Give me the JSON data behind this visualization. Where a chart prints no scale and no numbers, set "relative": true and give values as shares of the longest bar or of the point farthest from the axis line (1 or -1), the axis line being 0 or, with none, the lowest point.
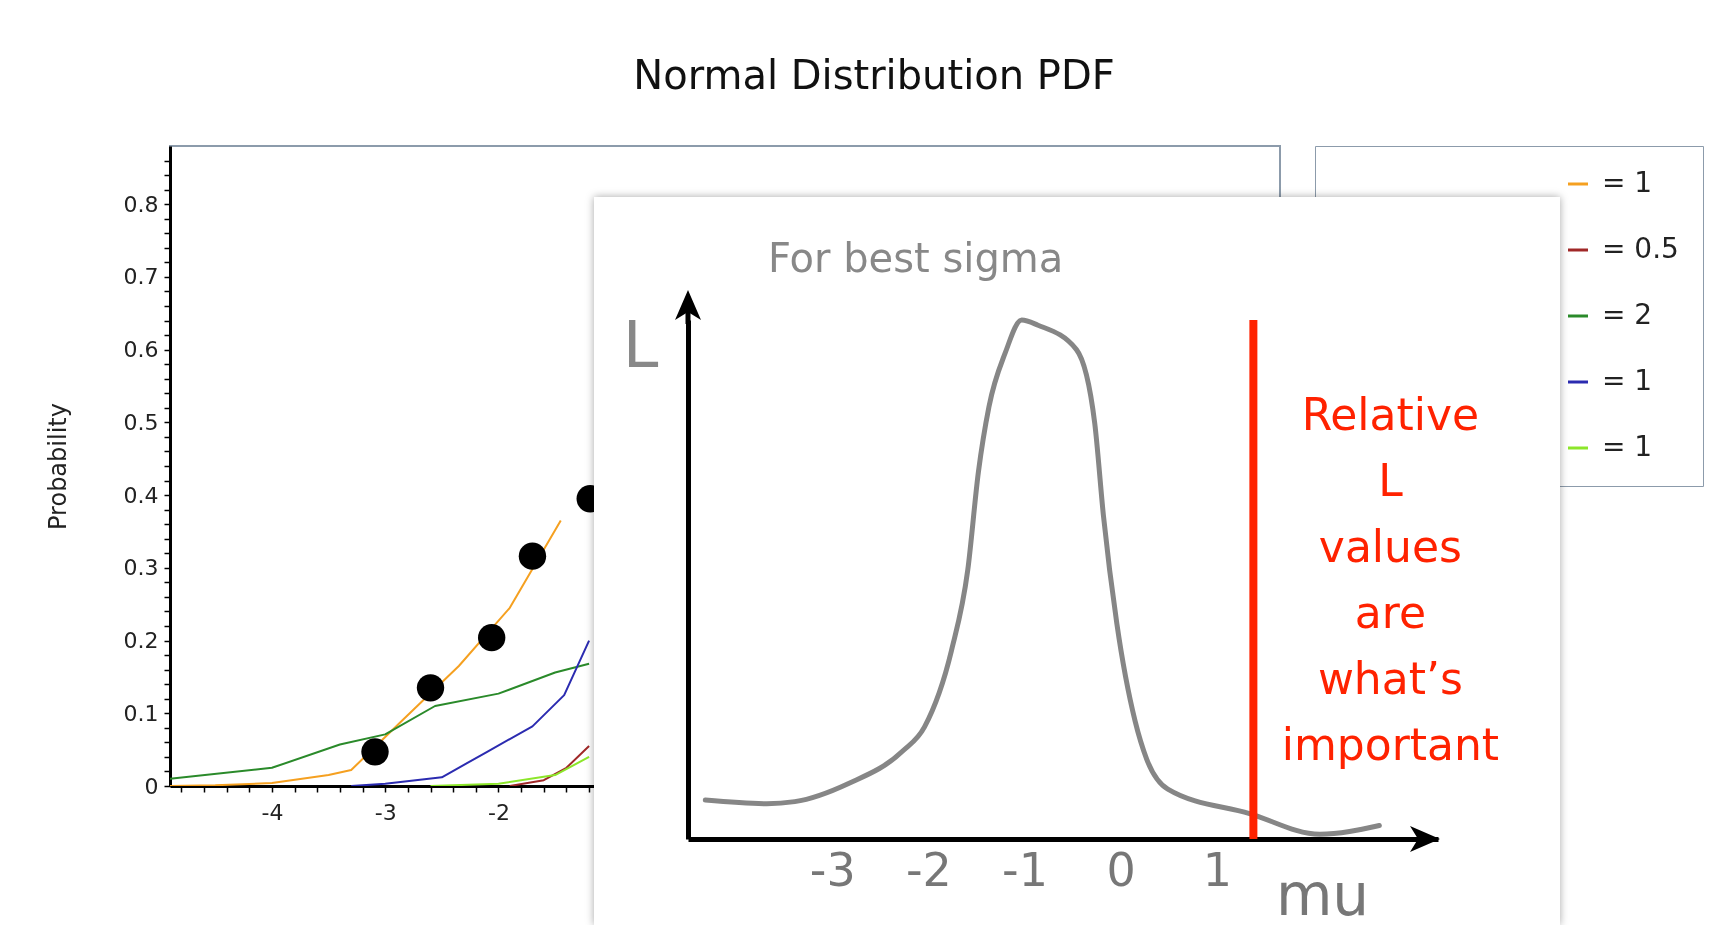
{
  "chart_data": [
    {
      "type": "line",
      "title": "Normal Distribution PDF",
      "ylabel": "Probability",
      "xlim": [
        -4.9,
        4.9
      ],
      "ylim": [
        0,
        0.88
      ],
      "xticks": [
        {
          "value": -4.8,
          "label": null
        },
        {
          "value": -4.6,
          "label": null
        },
        {
          "value": -4.4,
          "label": null
        },
        {
          "value": -4.2,
          "label": null
        },
        -4,
        {
          "value": -3.8,
          "label": null
        },
        {
          "value": -3.6,
          "label": null
        },
        {
          "value": -3.4,
          "label": null
        },
        {
          "value": -3.2,
          "label": null
        },
        -3,
        {
          "value": -2.8,
          "label": null
        },
        {
          "value": -2.6,
          "label": null
        },
        {
          "value": -2.4,
          "label": null
        },
        {
          "value": -2.2,
          "label": null
        },
        -2,
        {
          "value": -1.8,
          "label": null
        },
        {
          "value": -1.6,
          "label": null
        },
        {
          "value": -1.4,
          "label": null
        },
        {
          "value": -1.2,
          "label": null
        }
      ],
      "yticks": [
        0,
        {
          "value": 0.02,
          "label": null
        },
        {
          "value": 0.04,
          "label": null
        },
        {
          "value": 0.06,
          "label": null
        },
        {
          "value": 0.08,
          "label": null
        },
        0.1,
        {
          "value": 0.12,
          "label": null
        },
        {
          "value": 0.14,
          "label": null
        },
        {
          "value": 0.16,
          "label": null
        },
        {
          "value": 0.18,
          "label": null
        },
        0.2,
        {
          "value": 0.22,
          "label": null
        },
        {
          "value": 0.24,
          "label": null
        },
        {
          "value": 0.26,
          "label": null
        },
        {
          "value": 0.28,
          "label": null
        },
        0.3,
        {
          "value": 0.32,
          "label": null
        },
        {
          "value": 0.34,
          "label": null
        },
        {
          "value": 0.36,
          "label": null
        },
        {
          "value": 0.38,
          "label": null
        },
        0.4,
        {
          "value": 0.42,
          "label": null
        },
        {
          "value": 0.44,
          "label": null
        },
        {
          "value": 0.46,
          "label": null
        },
        {
          "value": 0.48,
          "label": null
        },
        0.5,
        {
          "value": 0.52,
          "label": null
        },
        {
          "value": 0.54,
          "label": null
        },
        {
          "value": 0.56,
          "label": null
        },
        {
          "value": 0.58,
          "label": null
        },
        0.6,
        {
          "value": 0.62,
          "label": null
        },
        {
          "value": 0.64,
          "label": null
        },
        {
          "value": 0.66,
          "label": null
        },
        {
          "value": 0.68,
          "label": null
        },
        0.7,
        {
          "value": 0.72,
          "label": null
        },
        {
          "value": 0.74,
          "label": null
        },
        {
          "value": 0.76,
          "label": null
        },
        {
          "value": 0.78,
          "label": null
        },
        0.8,
        {
          "value": 0.82,
          "label": null
        },
        {
          "value": 0.84,
          "label": null
        },
        {
          "value": 0.86,
          "label": null
        }
      ],
      "legend": "right",
      "series": [
        {
          "name": "= 1",
          "color": "#f5a020",
          "x": [
            -4.9,
            -4.5,
            -4,
            -3.5,
            -3.3,
            -2.85,
            -2.35,
            -1.9,
            -1.45
          ],
          "values": [
            0,
            0.001,
            0.004,
            0.015,
            0.022,
            0.09,
            0.165,
            0.245,
            0.365
          ]
        },
        {
          "name": "= 0.5",
          "color": "#a02828",
          "x": [
            -1.9,
            -1.6,
            -1.4,
            -1.2
          ],
          "values": [
            0,
            0.008,
            0.025,
            0.055
          ]
        },
        {
          "name": "= 2",
          "color": "#2a8a2a",
          "x": [
            -4.9,
            -4,
            -3.4,
            -3,
            -2.56,
            -2,
            -1.5,
            -1.2
          ],
          "values": [
            0.01,
            0.025,
            0.057,
            0.071,
            0.11,
            0.127,
            0.156,
            0.168
          ]
        },
        {
          "name": "= 1",
          "color": "#2b2bb0",
          "x": [
            -3.3,
            -3,
            -2.5,
            -2.1,
            -1.7,
            -1.42,
            -1.2
          ],
          "values": [
            0,
            0.003,
            0.012,
            0.047,
            0.082,
            0.125,
            0.2
          ]
        },
        {
          "name": "= 1",
          "color": "#8ce62a",
          "x": [
            -2.6,
            -2,
            -1.5,
            -1.2
          ],
          "values": [
            0,
            0.003,
            0.015,
            0.04
          ]
        },
        {
          "type": "scatter",
          "color": "#000000",
          "marker": "circle",
          "x": [
            -3.09,
            -2.6,
            -2.06,
            -1.7,
            -1.19
          ],
          "values": [
            0.047,
            0.135,
            0.204,
            0.316,
            0.395
          ]
        }
      ]
    },
    {
      "type": "line",
      "title": "For best sigma",
      "xlabel": "mu",
      "ylabel": "L",
      "relative": true,
      "xlim": [
        -4.5,
        3.3
      ],
      "xticks": [
        -3,
        -2,
        -1,
        0,
        1
      ],
      "x": [
        -4.32,
        -3.68,
        -3.39,
        -2.83,
        -2.27,
        -2.04,
        -1.76,
        -1.59,
        -1.48,
        -1.37,
        -1.2,
        -1.03,
        -0.86,
        -0.46,
        -0.27,
        -0.18,
        -0.04,
        0.15,
        0.27,
        0.49,
        1.34,
        2.07,
        2.69
      ],
      "series": [
        {
          "color": "#868686",
          "values": [
            0.075,
            0.068,
            0.072,
            0.107,
            0.169,
            0.216,
            0.363,
            0.519,
            0.707,
            0.833,
            0.937,
            1,
            0.99,
            0.943,
            0.801,
            0.624,
            0.415,
            0.227,
            0.154,
            0.096,
            0.049,
            0.009,
            0.026
          ]
        }
      ],
      "ref_lines": [
        {
          "axis": "x",
          "value": 1.38,
          "label": "Relative L values are what’s important",
          "color": "#ff2200"
        }
      ]
    }
  ]
}
